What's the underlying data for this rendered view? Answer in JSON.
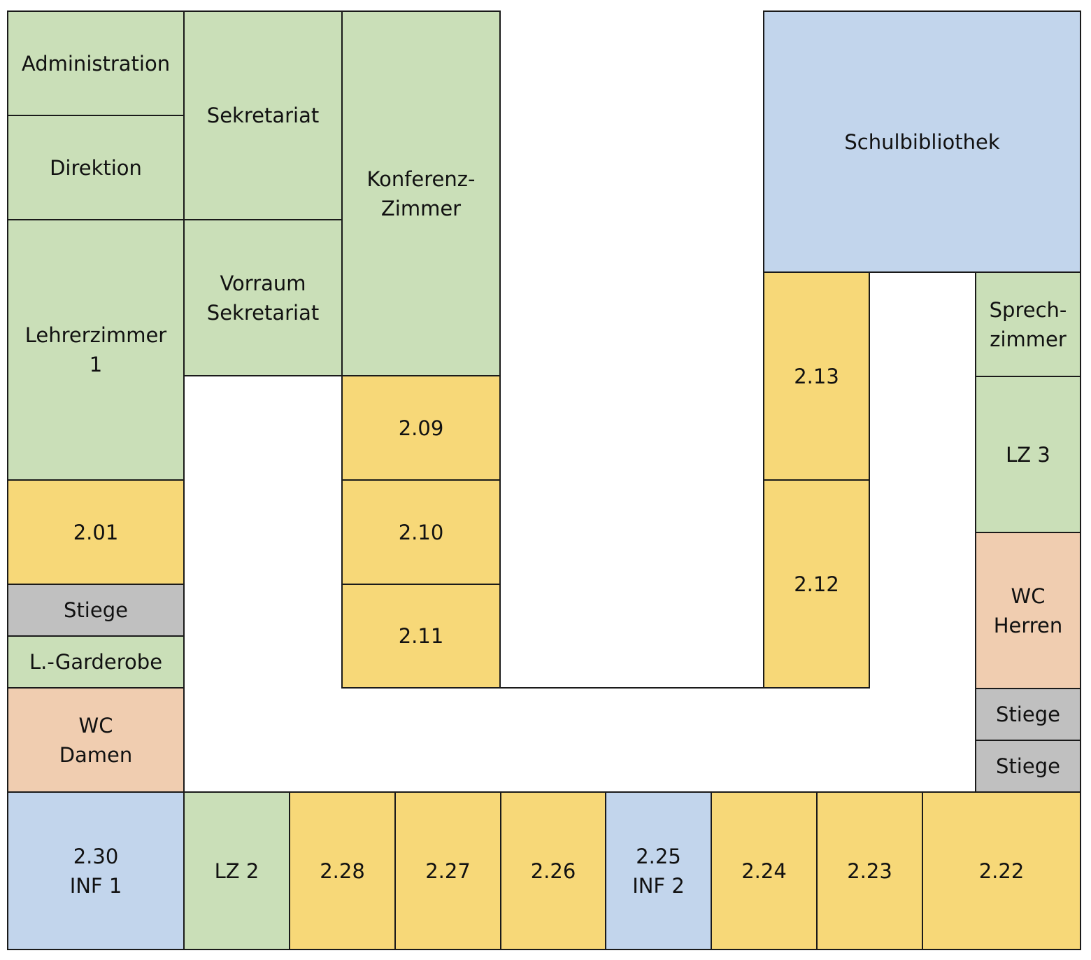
{
  "colors": {
    "office": "#cadfb8",
    "classroom": "#f7d878",
    "special": "#c2d5ec",
    "wc": "#f0cdb0",
    "stairs": "#c0c0c0",
    "border": "#1a1a1a"
  },
  "rooms": {
    "administration": "Administration",
    "direktion": "Direktion",
    "sekretariat": "Sekretariat",
    "konferenz": "Konferenz-\nZimmer",
    "vorraum": "Vorraum\nSekretariat",
    "lehrerzimmer1": "Lehrerzimmer\n1",
    "r201": "2.01",
    "stiege_left": "Stiege",
    "garderobe": "L.-Garderobe",
    "wc_damen": "WC\nDamen",
    "r209": "2.09",
    "r210": "2.10",
    "r211": "2.11",
    "schulbibliothek": "Schulbibliothek",
    "r213": "2.13",
    "r212": "2.12",
    "sprechzimmer": "Sprech-\nzimmer",
    "lz3": "LZ 3",
    "wc_herren": "WC\nHerren",
    "stiege_right_1": "Stiege",
    "stiege_right_2": "Stiege",
    "r230": "2.30\nINF 1",
    "lz2": "LZ 2",
    "r228": "2.28",
    "r227": "2.27",
    "r226": "2.26",
    "r225": "2.25\nINF 2",
    "r224": "2.24",
    "r223": "2.23",
    "r222": "2.22"
  }
}
